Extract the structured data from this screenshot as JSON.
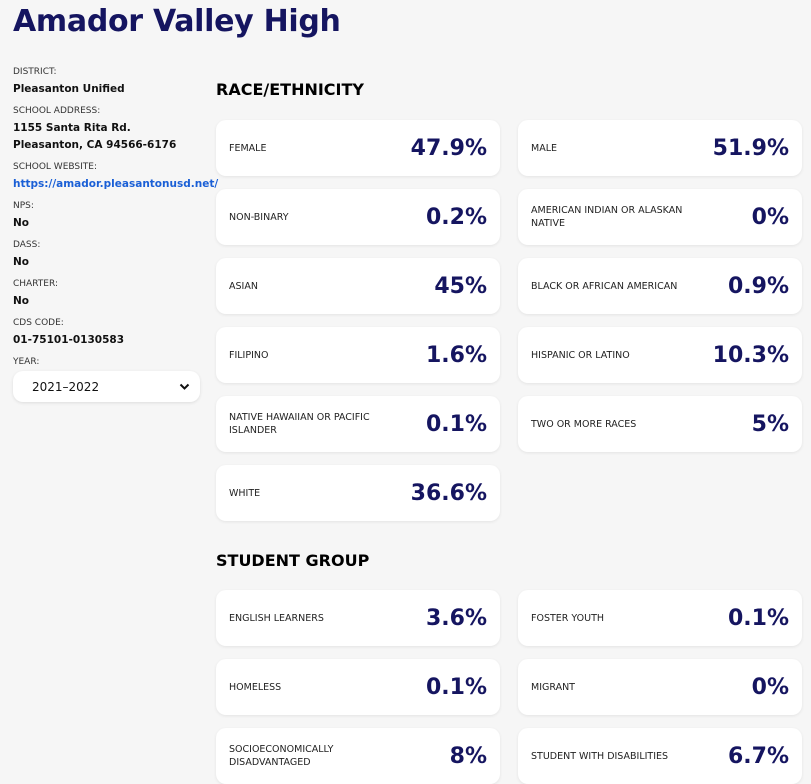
{
  "title": "Amador Valley High",
  "sidebar": {
    "district_label": "DISTRICT:",
    "district": "Pleasanton Unified",
    "address_label": "SCHOOL ADDRESS:",
    "address_line1": "1155 Santa Rita Rd.",
    "address_line2": "Pleasanton, CA 94566-6176",
    "website_label": "SCHOOL WEBSITE:",
    "website": "https://amador.pleasantonusd.net/",
    "nps_label": "NPS:",
    "nps": "No",
    "dass_label": "DASS:",
    "dass": "No",
    "charter_label": "CHARTER:",
    "charter": "No",
    "cds_label": "CDS CODE:",
    "cds": "01-75101-0130583",
    "year_label": "YEAR:",
    "year": "2021–2022"
  },
  "race": {
    "heading": "RACE/ETHNICITY",
    "cards": [
      {
        "label": "FEMALE",
        "value": "47.9%"
      },
      {
        "label": "MALE",
        "value": "51.9%"
      },
      {
        "label": "NON-BINARY",
        "value": "0.2%"
      },
      {
        "label": "AMERICAN INDIAN OR ALASKAN NATIVE",
        "value": "0%"
      },
      {
        "label": "ASIAN",
        "value": "45%"
      },
      {
        "label": "BLACK OR AFRICAN AMERICAN",
        "value": "0.9%"
      },
      {
        "label": "FILIPINO",
        "value": "1.6%"
      },
      {
        "label": "HISPANIC OR LATINO",
        "value": "10.3%"
      },
      {
        "label": "NATIVE HAWAIIAN OR PACIFIC ISLANDER",
        "value": "0.1%"
      },
      {
        "label": "TWO OR MORE RACES",
        "value": "5%"
      },
      {
        "label": "WHITE",
        "value": "36.6%"
      }
    ]
  },
  "group": {
    "heading": "STUDENT GROUP",
    "cards": [
      {
        "label": "ENGLISH LEARNERS",
        "value": "3.6%"
      },
      {
        "label": "FOSTER YOUTH",
        "value": "0.1%"
      },
      {
        "label": "HOMELESS",
        "value": "0.1%"
      },
      {
        "label": "MIGRANT",
        "value": "0%"
      },
      {
        "label": "SOCIOECONOMICALLY DISADVANTAGED",
        "value": "8%"
      },
      {
        "label": "STUDENT WITH DISABILITIES",
        "value": "6.7%"
      }
    ]
  }
}
